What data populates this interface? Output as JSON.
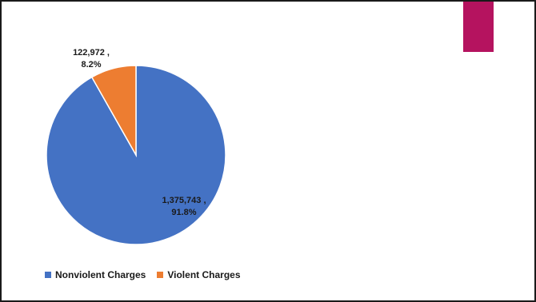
{
  "theme": {
    "accent_bar_color": "#B5135F"
  },
  "chart_data": {
    "type": "pie",
    "title": "",
    "legend_position": "bottom-left",
    "series": [
      {
        "name": "Nonviolent Charges",
        "value": 1375743,
        "percent": 91.8,
        "color": "#4472C4",
        "label_line1": "1,375,743 ,",
        "label_line2": "91.8%"
      },
      {
        "name": "Violent Charges",
        "value": 122972,
        "percent": 8.2,
        "color": "#ED7D31",
        "label_line1": "122,972 ,",
        "label_line2": "8.2%"
      }
    ]
  }
}
